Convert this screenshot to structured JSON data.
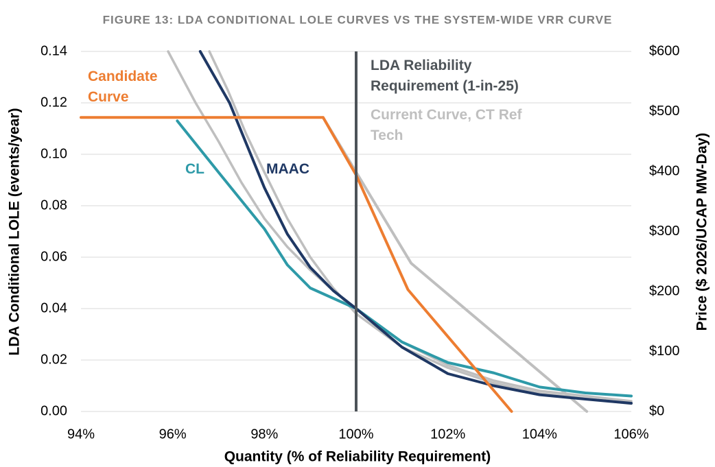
{
  "chart_data": {
    "type": "line",
    "title": "FIGURE 13: LDA CONDITIONAL LOLE CURVES VS THE SYSTEM-WIDE VRR CURVE",
    "x_label": "Quantity (% of Reliability Requirement)",
    "y_label": "LDA Conditional LOLE (events/year)",
    "y2_label": "Price ($ 2026/UCAP MW-Day)",
    "xlim": [
      94,
      106
    ],
    "xticks": [
      {
        "value": 94,
        "label": "94%"
      },
      {
        "value": 96,
        "label": "96%"
      },
      {
        "value": 98,
        "label": "98%"
      },
      {
        "value": 100,
        "label": "100%"
      },
      {
        "value": 102,
        "label": "102%"
      },
      {
        "value": 104,
        "label": "104%"
      },
      {
        "value": 106,
        "label": "106%"
      }
    ],
    "ylim": [
      0,
      0.14
    ],
    "yticks": [
      {
        "value": 0,
        "label": "0.00"
      },
      {
        "value": 0.02,
        "label": "0.02"
      },
      {
        "value": 0.04,
        "label": "0.04"
      },
      {
        "value": 0.06,
        "label": "0.06"
      },
      {
        "value": 0.08,
        "label": "0.08"
      },
      {
        "value": 0.1,
        "label": "0.10"
      },
      {
        "value": 0.12,
        "label": "0.12"
      },
      {
        "value": 0.14,
        "label": "0.14"
      }
    ],
    "y2lim": [
      0,
      600
    ],
    "y2ticks": [
      {
        "value": 0,
        "label": "$0"
      },
      {
        "value": 100,
        "label": "$100"
      },
      {
        "value": 200,
        "label": "$200"
      },
      {
        "value": 300,
        "label": "$300"
      },
      {
        "value": 400,
        "label": "$400"
      },
      {
        "value": 500,
        "label": "$500"
      },
      {
        "value": 600,
        "label": "$600"
      }
    ],
    "grid": true,
    "reference_line": {
      "x": 100,
      "color": "#4d5358",
      "label": "LDA Reliability Requirement (1-in-25)"
    },
    "series": [
      {
        "color": "#bfbfbf",
        "x": [
          95.9,
          96.5,
          97,
          97.5,
          98,
          98.5,
          99,
          99.5,
          100,
          101,
          102,
          103,
          104,
          105,
          106
        ],
        "values": [
          0.14,
          0.12,
          0.105,
          0.089,
          0.075,
          0.064,
          0.055,
          0.047,
          0.04,
          0.027,
          0.018,
          0.012,
          0.008,
          0.006,
          0.004
        ]
      },
      {
        "color": "#bfbfbf",
        "x": [
          96.8,
          97.2,
          97.6,
          98,
          98.5,
          99,
          99.5,
          100,
          101,
          102,
          103,
          104,
          105,
          106
        ],
        "values": [
          0.14,
          0.125,
          0.108,
          0.093,
          0.075,
          0.06,
          0.048,
          0.038,
          0.025,
          0.017,
          0.011,
          0.007,
          0.005,
          0.003
        ]
      },
      {
        "name": "CL",
        "color": "#2e9aa8",
        "x": [
          96.1,
          97,
          98,
          98.5,
          99,
          99.5,
          100,
          101,
          102,
          103,
          104,
          105,
          106
        ],
        "values": [
          0.113,
          0.093,
          0.071,
          0.057,
          0.048,
          0.044,
          0.04,
          0.027,
          0.019,
          0.015,
          0.0095,
          0.0072,
          0.006
        ]
      },
      {
        "name": "MAAC",
        "color": "#1f3864",
        "x": [
          96.6,
          97.24,
          98,
          98.5,
          99,
          99.5,
          100,
          101,
          102,
          103,
          104,
          105,
          106
        ],
        "values": [
          0.14,
          0.12,
          0.087,
          0.069,
          0.056,
          0.047,
          0.04,
          0.025,
          0.0147,
          0.01,
          0.0065,
          0.0048,
          0.0032
        ]
      },
      {
        "name": "Candidate Curve",
        "color": "#ed7d31",
        "axis": "y2",
        "x": [
          94,
          99.28,
          100,
          101.13,
          103.39
        ],
        "values": [
          490,
          490,
          394,
          203,
          0
        ]
      },
      {
        "name": "Current Curve, CT Ref Tech",
        "color": "#bfbfbf",
        "axis": "y2",
        "x": [
          99.28,
          101.2,
          105.03
        ],
        "values": [
          490,
          247,
          0
        ]
      }
    ]
  }
}
